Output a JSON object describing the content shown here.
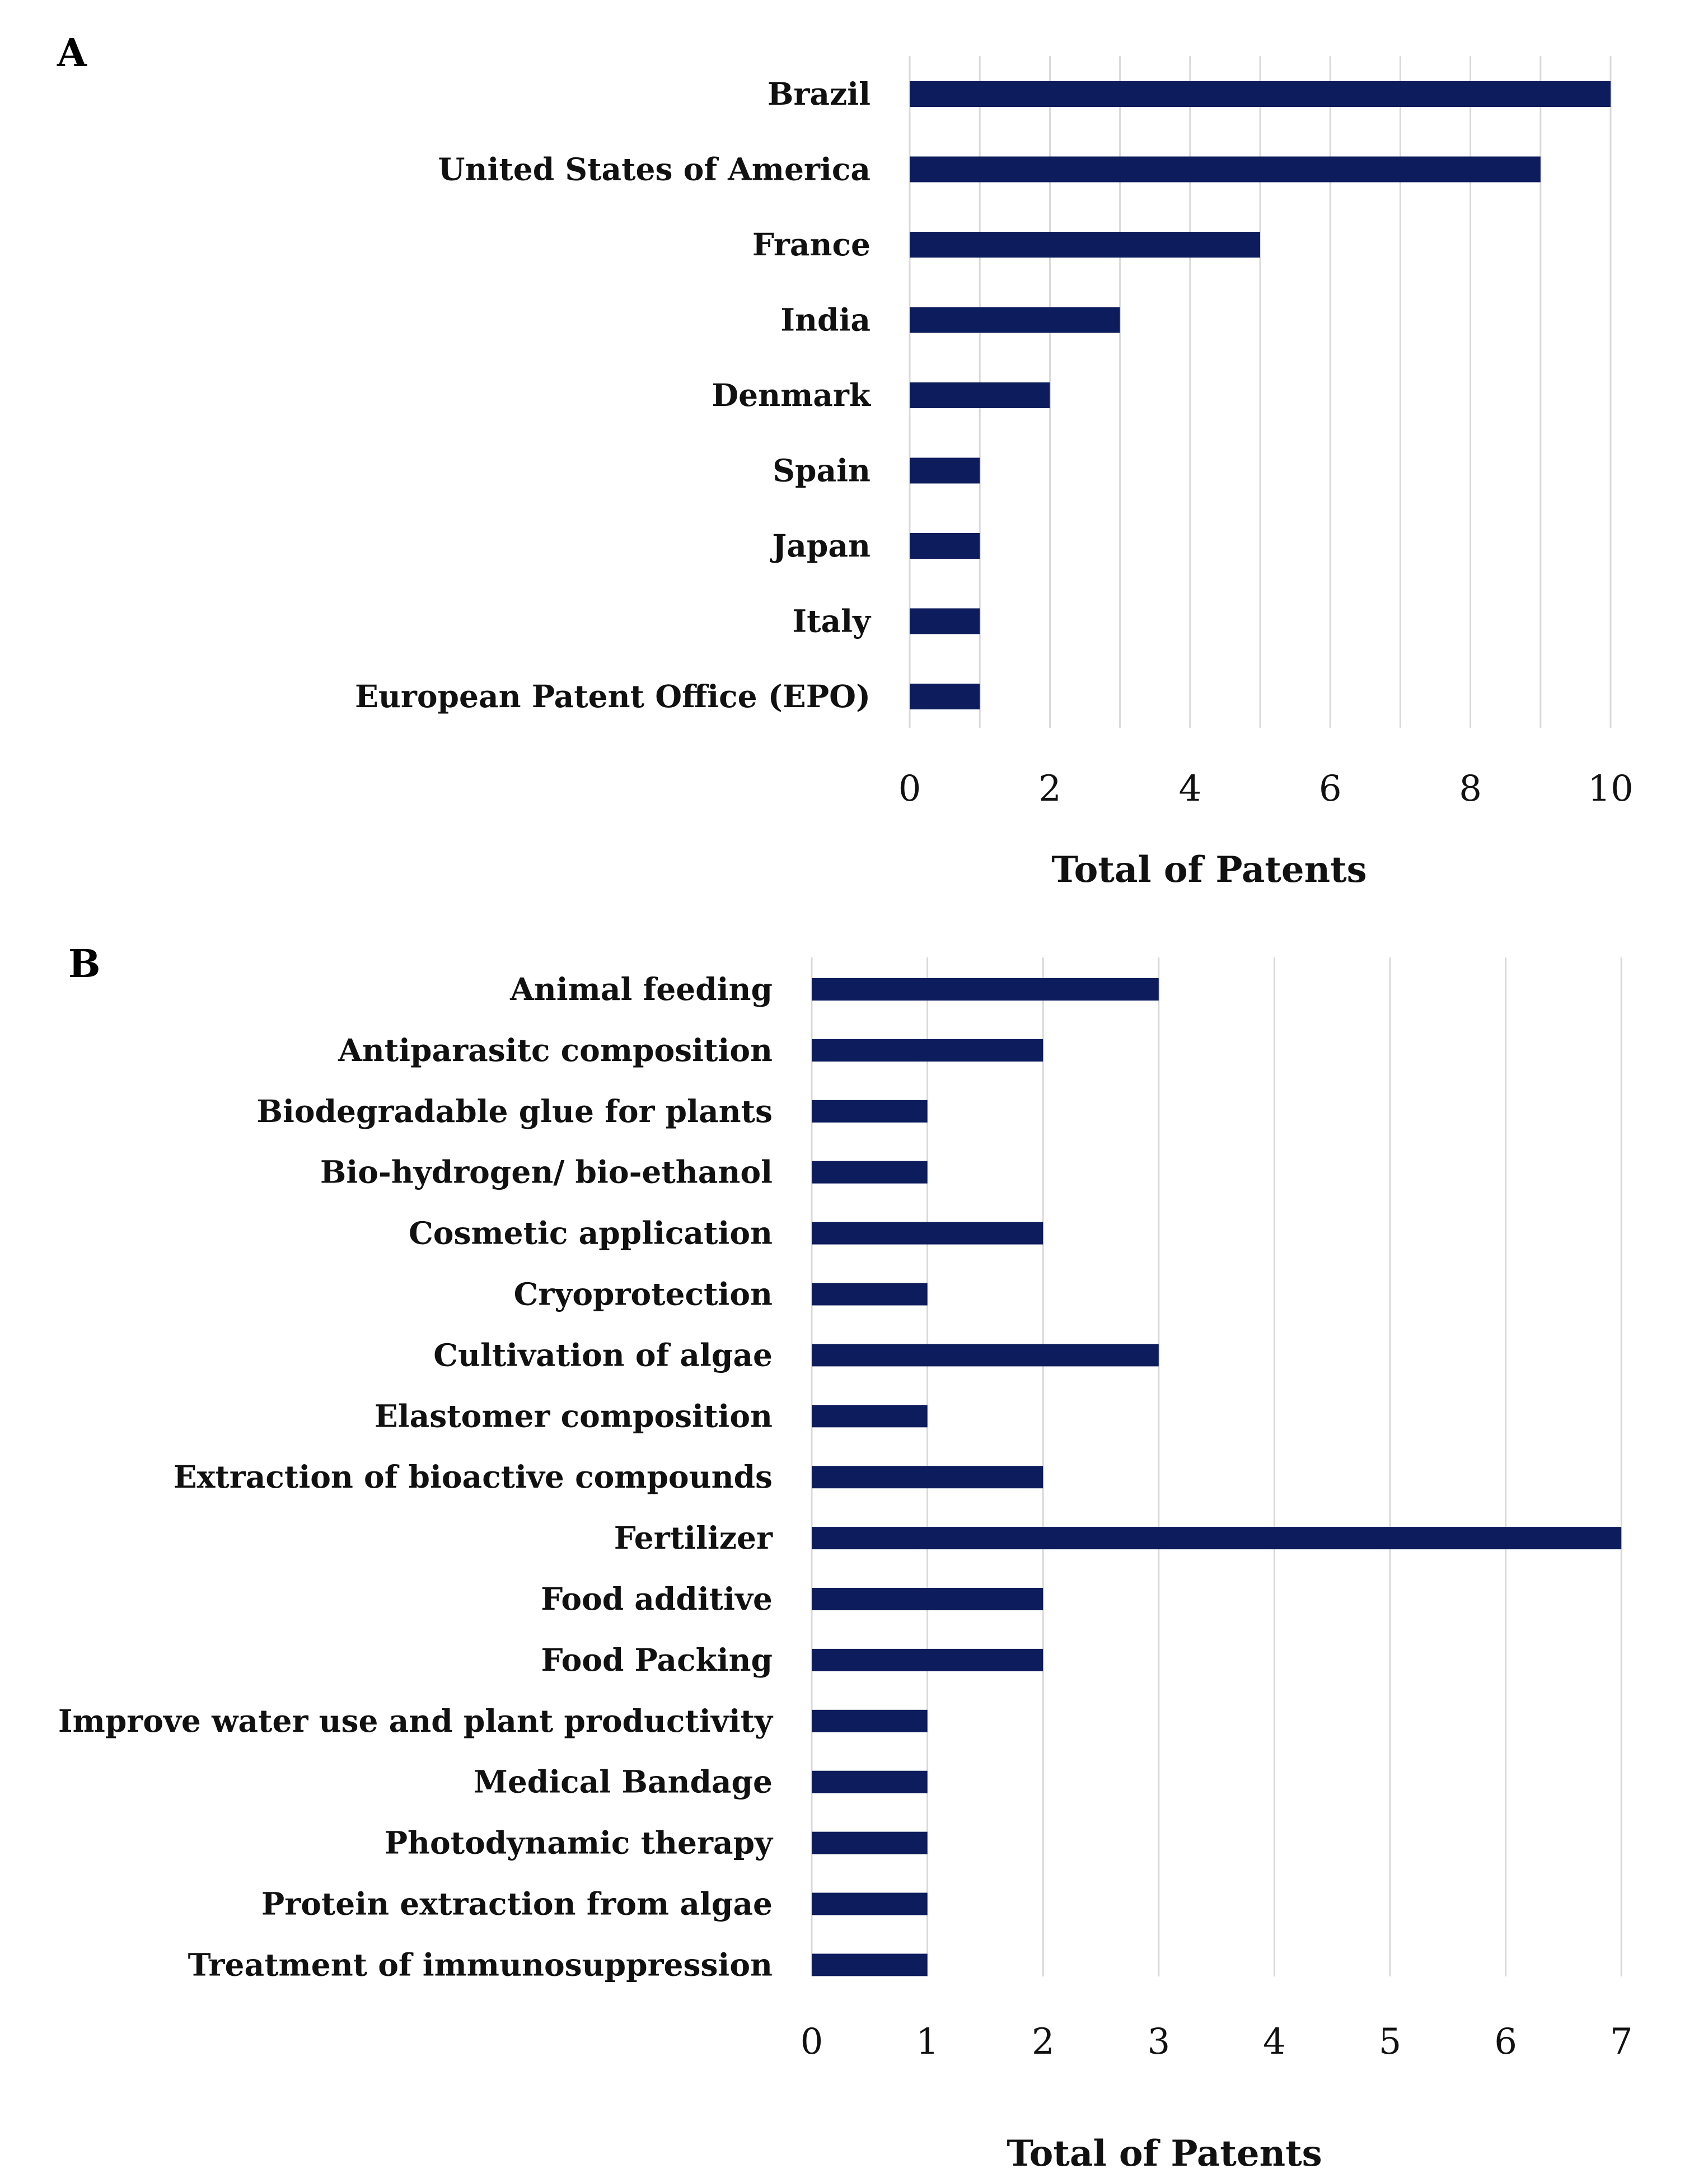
{
  "colors": {
    "bar": "#0d1c5c",
    "grid": "#d9d9d9",
    "text": "#111111"
  },
  "chart_data": [
    {
      "panel": "A",
      "type": "bar",
      "orientation": "horizontal",
      "categories": [
        "Brazil",
        "United States of America",
        "France",
        "India",
        "Denmark",
        "Spain",
        "Japan",
        "Italy",
        "European Patent Office (EPO)"
      ],
      "values": [
        10,
        9,
        5,
        3,
        2,
        1,
        1,
        1,
        1
      ],
      "xlabel": "Total of Patents",
      "ylabel": "",
      "xlim": [
        0,
        10
      ],
      "xticks": [
        0,
        2,
        4,
        6,
        8,
        10
      ],
      "grid": "vertical"
    },
    {
      "panel": "B",
      "type": "bar",
      "orientation": "horizontal",
      "categories": [
        "Animal feeding",
        "Antiparasitc composition",
        "Biodegradable glue for plants",
        "Bio-hydrogen/ bio-ethanol",
        "Cosmetic application",
        "Cryoprotection",
        "Cultivation of algae",
        "Elastomer composition",
        "Extraction of bioactive compounds",
        "Fertilizer",
        "Food additive",
        "Food Packing",
        "Improve water use and plant productivity",
        "Medical Bandage",
        "Photodynamic therapy",
        "Protein extraction from algae",
        "Treatment of immunosuppression"
      ],
      "values": [
        3,
        2,
        1,
        1,
        2,
        1,
        3,
        1,
        2,
        7,
        2,
        2,
        1,
        1,
        1,
        1,
        1
      ],
      "xlabel": "Total of Patents",
      "ylabel": "",
      "xlim": [
        0,
        7
      ],
      "xticks": [
        0,
        1,
        2,
        3,
        4,
        5,
        6,
        7
      ],
      "grid": "vertical"
    }
  ]
}
